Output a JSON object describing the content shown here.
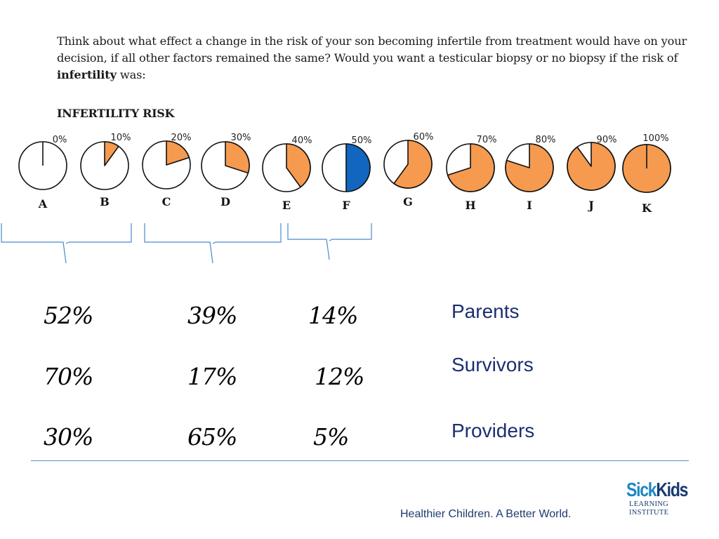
{
  "question": {
    "text_before": "Think about what effect a change in the risk of your son becoming infertile from treatment would have on your decision, if all other factors remained the same? Would you want a testicular biopsy or no biopsy if the risk of ",
    "bold": "infertility",
    "text_after": " was:"
  },
  "risk_title": "INFERTILITY RISK",
  "pies": [
    {
      "letter": "A",
      "percent_label": "0%",
      "risk": 0
    },
    {
      "letter": "B",
      "percent_label": "10%",
      "risk": 10
    },
    {
      "letter": "C",
      "percent_label": "20%",
      "risk": 20
    },
    {
      "letter": "D",
      "percent_label": "30%",
      "risk": 30
    },
    {
      "letter": "E",
      "percent_label": "40%",
      "risk": 40
    },
    {
      "letter": "F",
      "percent_label": "50%",
      "risk": 50,
      "highlight": true
    },
    {
      "letter": "G",
      "percent_label": "60%",
      "risk": 60
    },
    {
      "letter": "H",
      "percent_label": "70%",
      "risk": 70
    },
    {
      "letter": "I",
      "percent_label": "80%",
      "risk": 80
    },
    {
      "letter": "J",
      "percent_label": "90%",
      "risk": 90
    },
    {
      "letter": "K",
      "percent_label": "100%",
      "risk": 100
    }
  ],
  "colors": {
    "risk_fill": "#f59a4f",
    "highlight_fill": "#1166c0",
    "bracket": "#4a8ad0",
    "group_label": "#1c2f72",
    "divider": "#5b8cc9"
  },
  "results": [
    {
      "group": "Parents",
      "values": [
        "52%",
        "39%",
        "14%"
      ]
    },
    {
      "group": "Survivors",
      "values": [
        "70%",
        "17%",
        "12%"
      ]
    },
    {
      "group": "Providers",
      "values": [
        "30%",
        "65%",
        "5%"
      ]
    }
  ],
  "footer": {
    "tagline": "Healthier Children. A Better World.",
    "logo_sick": "Sick",
    "logo_kids": "Kids",
    "logo_line1": "LEARNING",
    "logo_line2": "INSTITUTE"
  }
}
